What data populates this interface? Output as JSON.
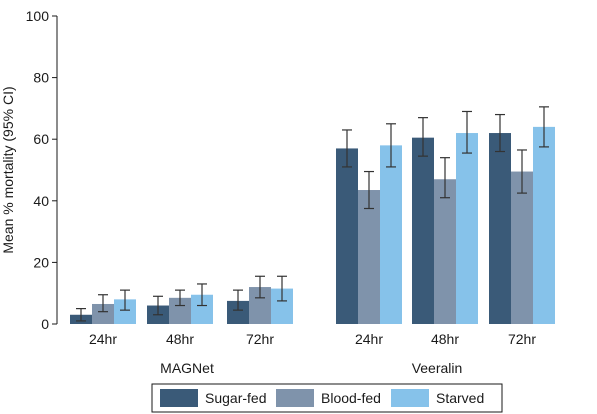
{
  "chart_data": {
    "type": "bar",
    "ylabel": "Mean % mortality (95% CI)",
    "ylim": [
      0,
      100
    ],
    "yticks": [
      0,
      20,
      40,
      60,
      80,
      100
    ],
    "grid": false,
    "legend_position": "bottom",
    "groups": [
      {
        "label": "MAGNet",
        "categories": [
          "24hr",
          "48hr",
          "72hr"
        ],
        "series": [
          {
            "name": "Sugar-fed",
            "values": [
              3,
              6,
              7.5
            ],
            "ci_low": [
              1,
              3,
              4.5
            ],
            "ci_high": [
              5,
              9,
              11
            ]
          },
          {
            "name": "Blood-fed",
            "values": [
              6.5,
              8.5,
              12
            ],
            "ci_low": [
              4,
              6,
              8.5
            ],
            "ci_high": [
              9.5,
              11,
              15.5
            ]
          },
          {
            "name": "Starved",
            "values": [
              8,
              9.5,
              11.5
            ],
            "ci_low": [
              4.5,
              6,
              7.5
            ],
            "ci_high": [
              11,
              13,
              15.5
            ]
          }
        ]
      },
      {
        "label": "Veeralin",
        "categories": [
          "24hr",
          "48hr",
          "72hr"
        ],
        "series": [
          {
            "name": "Sugar-fed",
            "values": [
              57,
              60.5,
              62
            ],
            "ci_low": [
              51,
              54.5,
              56
            ],
            "ci_high": [
              63,
              67,
              68
            ]
          },
          {
            "name": "Blood-fed",
            "values": [
              43.5,
              47,
              49.5
            ],
            "ci_low": [
              37.5,
              41,
              42.5
            ],
            "ci_high": [
              49.5,
              54,
              56.5
            ]
          },
          {
            "name": "Starved",
            "values": [
              58,
              62,
              64
            ],
            "ci_low": [
              51,
              55.5,
              57.5
            ],
            "ci_high": [
              65,
              69,
              70.5
            ]
          }
        ]
      }
    ],
    "legend": [
      {
        "name": "Sugar-fed",
        "color": "#3a5a78"
      },
      {
        "name": "Blood-fed",
        "color": "#7f93ab"
      },
      {
        "name": "Starved",
        "color": "#86c2ea"
      }
    ]
  }
}
